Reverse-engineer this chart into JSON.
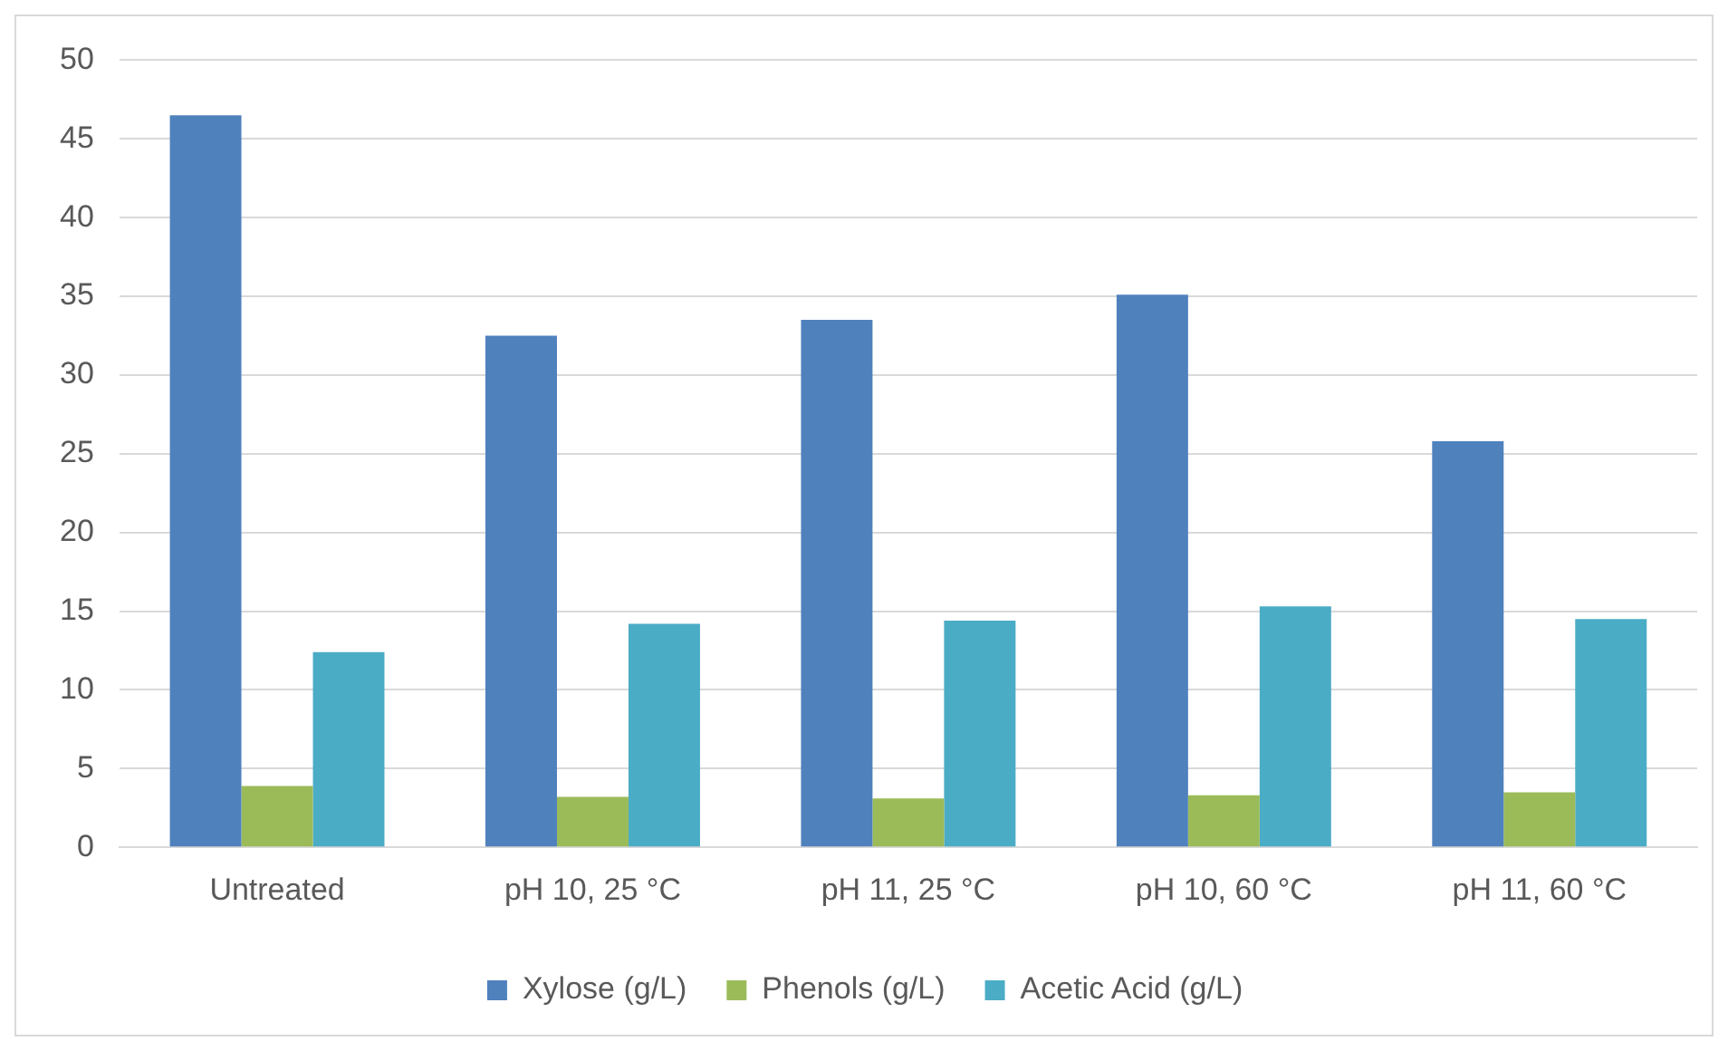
{
  "chart_data": {
    "type": "bar",
    "categories": [
      "Untreated",
      "pH 10, 25 °C",
      "pH 11, 25 °C",
      "pH 10, 60 °C",
      "pH 11, 60 °C"
    ],
    "series": [
      {
        "name": "Xylose (g/L)",
        "color": "#4f81bd",
        "values": [
          46.5,
          32.5,
          33.5,
          35.1,
          25.8
        ]
      },
      {
        "name": "Phenols (g/L)",
        "color": "#9bbb59",
        "values": [
          3.9,
          3.2,
          3.1,
          3.3,
          3.5
        ]
      },
      {
        "name": "Acetic Acid (g/L)",
        "color": "#4bacc6",
        "values": [
          12.4,
          14.2,
          14.4,
          15.3,
          14.5
        ]
      }
    ],
    "ylim": [
      0,
      50
    ],
    "yticks": [
      0,
      5,
      10,
      15,
      20,
      25,
      30,
      35,
      40,
      45,
      50
    ],
    "grid": "y",
    "legend": "bottom"
  }
}
